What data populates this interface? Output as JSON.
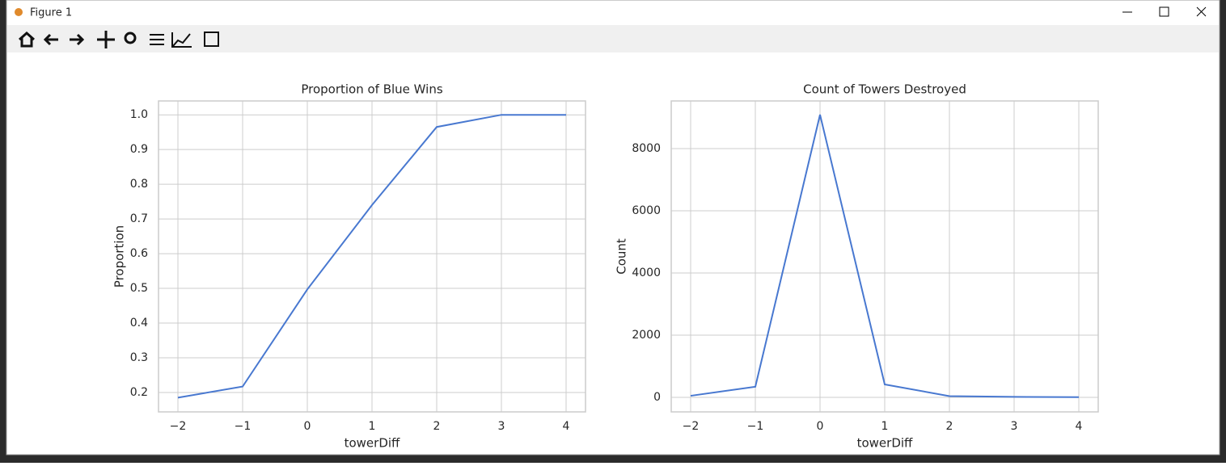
{
  "window": {
    "title": "Figure 1"
  },
  "chart_data": [
    {
      "type": "line",
      "title": "Proportion of Blue Wins",
      "x_label": "towerDiff",
      "y_label": "Proportion",
      "x": [
        -2,
        -1,
        0,
        1,
        2,
        3,
        4
      ],
      "series": [
        {
          "color": "#4878d0",
          "values": [
            0.185,
            0.217,
            0.497,
            0.74,
            0.965,
            1.0,
            1.0
          ]
        }
      ],
      "xlim": [
        -2.3,
        4.3
      ],
      "xticks": [
        {
          "value": -2,
          "label": "−2"
        },
        {
          "value": -1,
          "label": "−1"
        },
        0,
        1,
        2,
        3,
        4
      ],
      "ylim": [
        0.144,
        1.04
      ],
      "yticks": [
        0.2,
        0.3,
        0.4,
        0.5,
        0.6,
        0.7,
        0.8,
        0.9,
        {
          "value": 1.0,
          "label": "1.0"
        }
      ],
      "grid": true
    },
    {
      "type": "line",
      "title": "Count of Towers Destroyed",
      "x_label": "towerDiff",
      "y_label": "Count",
      "x": [
        -2,
        -1,
        0,
        1,
        2,
        3,
        4
      ],
      "series": [
        {
          "color": "#4878d0",
          "values": [
            50,
            340,
            9090,
            415,
            40,
            15,
            5
          ]
        }
      ],
      "xlim": [
        -2.3,
        4.3
      ],
      "xticks": [
        {
          "value": -2,
          "label": "−2"
        },
        {
          "value": -1,
          "label": "−1"
        },
        0,
        1,
        2,
        3,
        4
      ],
      "ylim": [
        -468,
        9532
      ],
      "yticks": [
        0,
        2000,
        4000,
        6000,
        8000
      ],
      "grid": true
    }
  ]
}
